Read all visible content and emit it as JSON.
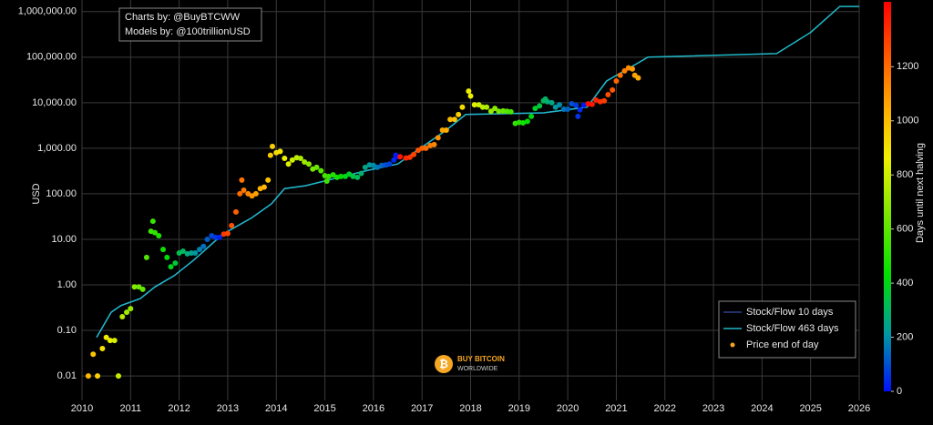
{
  "chart_data": {
    "type": "scatter",
    "y_label": "USD",
    "log_y": true,
    "xlim": [
      2010,
      2026
    ],
    "xticks": [
      2010,
      2011,
      2012,
      2013,
      2014,
      2015,
      2016,
      2017,
      2018,
      2019,
      2020,
      2021,
      2022,
      2023,
      2024,
      2025,
      2026
    ],
    "ylim": [
      0.0029,
      1800000
    ],
    "yticks": [
      {
        "value": 0.01,
        "label": "0.01"
      },
      {
        "value": 0.1,
        "label": "0.10"
      },
      {
        "value": 1,
        "label": "1.00"
      },
      {
        "value": 10,
        "label": "10.00"
      },
      {
        "value": 100,
        "label": "100.00"
      },
      {
        "value": 1000,
        "label": "1,000.00"
      },
      {
        "value": 10000,
        "label": "10,000.00"
      },
      {
        "value": 100000,
        "label": "100,000.00"
      },
      {
        "value": 1000000,
        "label": "1,000,000.00"
      }
    ],
    "grid": true,
    "legend": "bottom-right",
    "annotations": [
      "Charts by: @BuyBTCWW",
      "Models by: @100trillionUSD"
    ],
    "logo": [
      "BUY BITCOIN",
      "WORLDWIDE"
    ],
    "colorbar": {
      "label": "Days until next halving",
      "clim": [
        0,
        1440
      ],
      "ticks": [
        0,
        200,
        400,
        600,
        800,
        1000,
        1200
      ],
      "colorscale": [
        [
          0,
          "#0010ff"
        ],
        [
          0.15,
          "#009aa0"
        ],
        [
          0.3,
          "#00e000"
        ],
        [
          0.6,
          "#f0f000"
        ],
        [
          0.72,
          "#ffb000"
        ],
        [
          0.85,
          "#ff6000"
        ],
        [
          1,
          "#ff0000"
        ]
      ]
    },
    "series": [
      {
        "name": "Stock/Flow 10 days",
        "color": "#2f3f8a",
        "x": [
          2010.3,
          2010.6,
          2010.8,
          2011.2,
          2011.5,
          2011.9,
          2012.3,
          2012.9,
          2013.5,
          2013.9,
          2014.17,
          2014.6,
          2015.3,
          2015.9,
          2016.5,
          2016.9,
          2017.5,
          2017.9,
          2018.5,
          2019.5,
          2020.4,
          2020.8,
          2021.4
        ],
        "values": [
          0.07,
          0.25,
          0.35,
          0.5,
          0.9,
          1.6,
          3.5,
          13,
          30,
          60,
          130,
          150,
          230,
          330,
          450,
          900,
          2500,
          5500,
          5700,
          6000,
          8000,
          30000,
          70000
        ]
      },
      {
        "name": "Stock/Flow 463 days",
        "color": "#1fb8c8",
        "x": [
          2010.3,
          2010.6,
          2010.8,
          2011.2,
          2011.5,
          2011.9,
          2012.3,
          2012.9,
          2013.5,
          2013.9,
          2014.17,
          2014.6,
          2015.3,
          2015.9,
          2016.5,
          2016.9,
          2017.5,
          2017.9,
          2018.5,
          2019.5,
          2020.4,
          2020.8,
          2021.4,
          2021.65,
          2024.3,
          2025.0,
          2025.6,
          2026
        ],
        "values": [
          0.07,
          0.25,
          0.35,
          0.5,
          0.9,
          1.6,
          3.5,
          13,
          30,
          60,
          130,
          150,
          230,
          330,
          450,
          900,
          2500,
          5500,
          5700,
          6000,
          8000,
          30000,
          70000,
          100000,
          120000,
          350000,
          1300000,
          1300000
        ]
      },
      {
        "name": "Price end of day",
        "color": "#f5a623",
        "x": [
          2010.13,
          2010.23,
          2010.32,
          2010.42,
          2010.5,
          2010.58,
          2010.67,
          2010.75,
          2010.83,
          2010.92,
          2011.0,
          2011.08,
          2011.17,
          2011.25,
          2011.33,
          2011.42,
          2011.46,
          2011.5,
          2011.58,
          2011.67,
          2011.75,
          2011.83,
          2011.92,
          2012.0,
          2012.08,
          2012.17,
          2012.25,
          2012.33,
          2012.42,
          2012.5,
          2012.58,
          2012.67,
          2012.75,
          2012.83,
          2012.92,
          2013.0,
          2013.08,
          2013.17,
          2013.25,
          2013.29,
          2013.33,
          2013.42,
          2013.5,
          2013.58,
          2013.67,
          2013.75,
          2013.83,
          2013.88,
          2013.92,
          2014.0,
          2014.08,
          2014.17,
          2014.25,
          2014.33,
          2014.42,
          2014.5,
          2014.58,
          2014.67,
          2014.75,
          2014.83,
          2014.92,
          2015.0,
          2015.04,
          2015.08,
          2015.17,
          2015.25,
          2015.33,
          2015.42,
          2015.5,
          2015.58,
          2015.67,
          2015.75,
          2015.83,
          2015.92,
          2016.0,
          2016.08,
          2016.17,
          2016.25,
          2016.33,
          2016.42,
          2016.46,
          2016.5,
          2016.55,
          2016.67,
          2016.75,
          2016.83,
          2016.92,
          2017.0,
          2017.08,
          2017.17,
          2017.25,
          2017.33,
          2017.42,
          2017.5,
          2017.58,
          2017.67,
          2017.75,
          2017.83,
          2017.96,
          2018.0,
          2018.08,
          2018.17,
          2018.25,
          2018.33,
          2018.42,
          2018.5,
          2018.58,
          2018.67,
          2018.75,
          2018.83,
          2018.92,
          2019.0,
          2019.08,
          2019.17,
          2019.25,
          2019.33,
          2019.42,
          2019.5,
          2019.54,
          2019.58,
          2019.67,
          2019.75,
          2019.83,
          2019.92,
          2020.0,
          2020.08,
          2020.17,
          2020.21,
          2020.25,
          2020.33,
          2020.42,
          2020.5,
          2020.58,
          2020.67,
          2020.75,
          2020.83,
          2020.92,
          2021.0,
          2021.08,
          2021.17,
          2021.25,
          2021.33,
          2021.38,
          2021.45
        ],
        "values": [
          0.01,
          0.03,
          0.01,
          0.04,
          0.07,
          0.06,
          0.06,
          0.01,
          0.2,
          0.25,
          0.3,
          0.9,
          0.9,
          0.8,
          4,
          15,
          25,
          14,
          12,
          6,
          4,
          2.5,
          3,
          5,
          5.5,
          4.8,
          5,
          5,
          6,
          7,
          10,
          12,
          11,
          11,
          13,
          13.5,
          20,
          40,
          100,
          200,
          120,
          100,
          90,
          100,
          130,
          140,
          200,
          700,
          1100,
          800,
          850,
          600,
          450,
          550,
          620,
          600,
          500,
          450,
          350,
          380,
          320,
          250,
          190,
          240,
          260,
          230,
          240,
          240,
          270,
          240,
          230,
          280,
          380,
          430,
          420,
          380,
          420,
          430,
          450,
          550,
          700,
          650,
          650,
          610,
          630,
          730,
          900,
          1000,
          1000,
          1150,
          1200,
          1700,
          2500,
          2500,
          4300,
          4300,
          5500,
          8000,
          18000,
          14000,
          9000,
          9000,
          8000,
          8000,
          6500,
          7500,
          6500,
          6600,
          6500,
          6300,
          3500,
          3700,
          3600,
          3900,
          5000,
          7500,
          8500,
          11000,
          12000,
          10500,
          10000,
          8000,
          9000,
          7200,
          7200,
          9500,
          8800,
          5000,
          7000,
          8800,
          9500,
          9200,
          11500,
          10500,
          11000,
          15000,
          19000,
          30000,
          40000,
          50000,
          58000,
          55000,
          40000,
          35000
        ],
        "days": [
          1014,
          978,
          945,
          909,
          880,
          850,
          821,
          788,
          759,
          726,
          697,
          668,
          635,
          606,
          577,
          544,
          529,
          515,
          485,
          456,
          427,
          394,
          361,
          332,
          303,
          270,
          241,
          212,
          179,
          150,
          120,
          88,
          58,
          29,
          1314,
          1285,
          1256,
          1226,
          1197,
          1183,
          1168,
          1135,
          1106,
          1077,
          1044,
          1015,
          986,
          967,
          953,
          924,
          894,
          862,
          832,
          803,
          770,
          741,
          712,
          679,
          650,
          621,
          588,
          559,
          544,
          530,
          497,
          467,
          438,
          405,
          376,
          347,
          314,
          285,
          256,
          223,
          193,
          164,
          131,
          102,
          73,
          40,
          22,
          7,
          1391,
          1347,
          1318,
          1289,
          1256,
          1227,
          1197,
          1164,
          1135,
          1106,
          1073,
          1044,
          1015,
          982,
          953,
          924,
          876,
          862,
          833,
          800,
          770,
          741,
          708,
          679,
          650,
          617,
          588,
          559,
          526,
          496,
          467,
          434,
          405,
          376,
          343,
          314,
          299,
          285,
          252,
          223,
          193,
          161,
          131,
          102,
          69,
          55,
          40,
          11,
          1416,
          1387,
          1358,
          1329,
          1300,
          1270,
          1241,
          1212,
          1183,
          1150,
          1121,
          1091,
          1073,
          1048
        ]
      }
    ]
  }
}
